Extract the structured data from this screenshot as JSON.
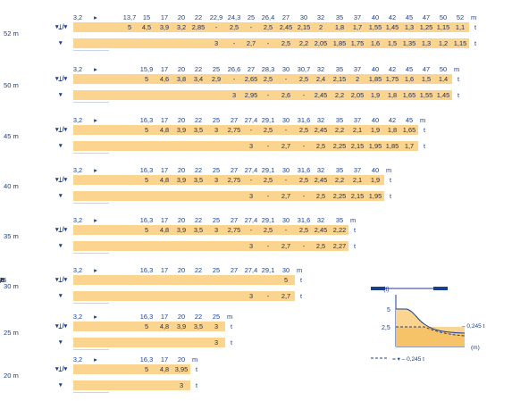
{
  "rows_icon_main": "▾⍊/▾",
  "rows_icon_alt": "▾",
  "unit_m": "m",
  "unit_t": "t",
  "arrow": "▸",
  "sections": [
    {
      "boom": "52 m",
      "radii": [
        "3,2",
        "▸",
        "13,7",
        "15",
        "17",
        "20",
        "22",
        "22,9",
        "24,3",
        "25",
        "26,4",
        "27",
        "30",
        "32",
        "35",
        "37",
        "40",
        "42",
        "45",
        "47",
        "50",
        "52"
      ],
      "main": [
        "5",
        "4,5",
        "3,9",
        "3,2",
        "2,85",
        "-",
        "2,5",
        "-",
        "2,5",
        "2,45",
        "2,15",
        "2",
        "1,8",
        "1,7",
        "1,55",
        "1,45",
        "1,3",
        "1,25",
        "1,15",
        "1,1"
      ],
      "alt": [
        "3",
        "-",
        "2,7",
        "-",
        "2,5",
        "2,2",
        "2,05",
        "1,85",
        "1,75",
        "1,6",
        "1,5",
        "1,35",
        "1,3",
        "1,2",
        "1,15"
      ]
    },
    {
      "boom": "50 m",
      "radii": [
        "3,2",
        "▸",
        "15,9",
        "17",
        "20",
        "22",
        "25",
        "26,6",
        "27",
        "28,3",
        "30",
        "30,7",
        "32",
        "35",
        "37",
        "40",
        "42",
        "45",
        "47",
        "50"
      ],
      "main": [
        "5",
        "4,6",
        "3,8",
        "3,4",
        "2,9",
        "-",
        "2,65",
        "2,5",
        "-",
        "2,5",
        "2,4",
        "2,15",
        "2",
        "1,85",
        "1,75",
        "1,6",
        "1,5",
        "1,4"
      ],
      "alt": [
        "3",
        "2,95",
        "-",
        "2,6",
        "-",
        "2,45",
        "2,2",
        "2,05",
        "1,9",
        "1,8",
        "1,65",
        "1,55",
        "1,45"
      ]
    },
    {
      "boom": "45 m",
      "radii": [
        "3,2",
        "▸",
        "16,3",
        "17",
        "20",
        "22",
        "25",
        "27",
        "27,4",
        "29,1",
        "30",
        "31,6",
        "32",
        "35",
        "37",
        "40",
        "42",
        "45"
      ],
      "main": [
        "5",
        "4,8",
        "3,9",
        "3,5",
        "3",
        "2,75",
        "-",
        "2,5",
        "-",
        "2,5",
        "2,45",
        "2,2",
        "2,1",
        "1,9",
        "1,8",
        "1,65"
      ],
      "alt": [
        "3",
        "-",
        "2,7",
        "-",
        "2,5",
        "2,25",
        "2,15",
        "1,95",
        "1,85",
        "1,7"
      ]
    },
    {
      "boom": "40 m",
      "radii": [
        "3,2",
        "▸",
        "16,3",
        "17",
        "20",
        "22",
        "25",
        "27",
        "27,4",
        "29,1",
        "30",
        "31,6",
        "32",
        "35",
        "37",
        "40"
      ],
      "main": [
        "5",
        "4,8",
        "3,9",
        "3,5",
        "3",
        "2,75",
        "-",
        "2,5",
        "-",
        "2,5",
        "2,45",
        "2,2",
        "2,1",
        "1,9"
      ],
      "alt": [
        "3",
        "-",
        "2,7",
        "-",
        "2,5",
        "2,25",
        "2,15",
        "1,95"
      ]
    },
    {
      "boom": "35 m",
      "radii": [
        "3,2",
        "▸",
        "16,3",
        "17",
        "20",
        "22",
        "25",
        "27",
        "27,4",
        "29,1",
        "30",
        "31,6",
        "32",
        "35"
      ],
      "main": [
        "5",
        "4,8",
        "3,9",
        "3,5",
        "3",
        "2,75",
        "-",
        "2,5",
        "-",
        "2,5",
        "2,45",
        "2,22"
      ],
      "alt": [
        "3",
        "-",
        "2,7",
        "-",
        "2,5",
        "2,27"
      ]
    },
    {
      "boom": "30 m",
      "radii": [
        "3,2",
        "▸",
        "16,3",
        "17",
        "20",
        "22",
        "25",
        "27",
        "27,4",
        "29,1",
        "30"
      ],
      "main": [
        "5",
        "4,8",
        "3,9",
        "3,5",
        "3",
        "2,75",
        "-",
        "2,5",
        "-",
        "2,5"
      ],
      "alt": [
        "3",
        "-",
        "2,7"
      ]
    },
    {
      "boom": "25 m",
      "radii": [
        "3,2",
        "▸",
        "16,3",
        "17",
        "20",
        "22",
        "25"
      ],
      "main": [
        "5",
        "4,8",
        "3,9",
        "3,5",
        "3"
      ],
      "alt": [
        "3"
      ]
    },
    {
      "boom": "20 m",
      "radii": [
        "3,2",
        "▸",
        "16,3",
        "17",
        "20"
      ],
      "main": [
        "5",
        "4,8",
        "3,95"
      ],
      "alt": [
        "3"
      ]
    }
  ],
  "legend": {
    "y_unit": "(t)",
    "x_unit": "(m)",
    "tick_5": "5",
    "tick_25": "2,5",
    "right_label": "– 0,245 t",
    "bottom_label": "= ▾ – 0,245 t"
  }
}
